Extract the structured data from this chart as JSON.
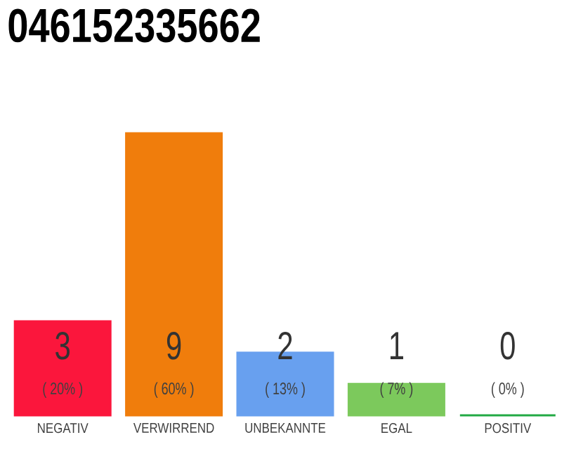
{
  "chart_data": {
    "type": "bar",
    "title": "046152335662",
    "categories": [
      "NEGATIV",
      "VERWIRREND",
      "UNBEKANNTE",
      "EGAL",
      "POSITIV"
    ],
    "values": [
      3,
      9,
      2,
      1,
      0
    ],
    "colors": [
      "#fb163c",
      "#f07d0c",
      "#68a0ef",
      "#7cc95c",
      "#22aa44"
    ],
    "ylim": [
      0,
      9
    ],
    "data_labels": true,
    "annotations": [
      "( 20% )",
      "( 60% )",
      "( 13% )",
      "( 7% )",
      "( 0% )"
    ]
  }
}
